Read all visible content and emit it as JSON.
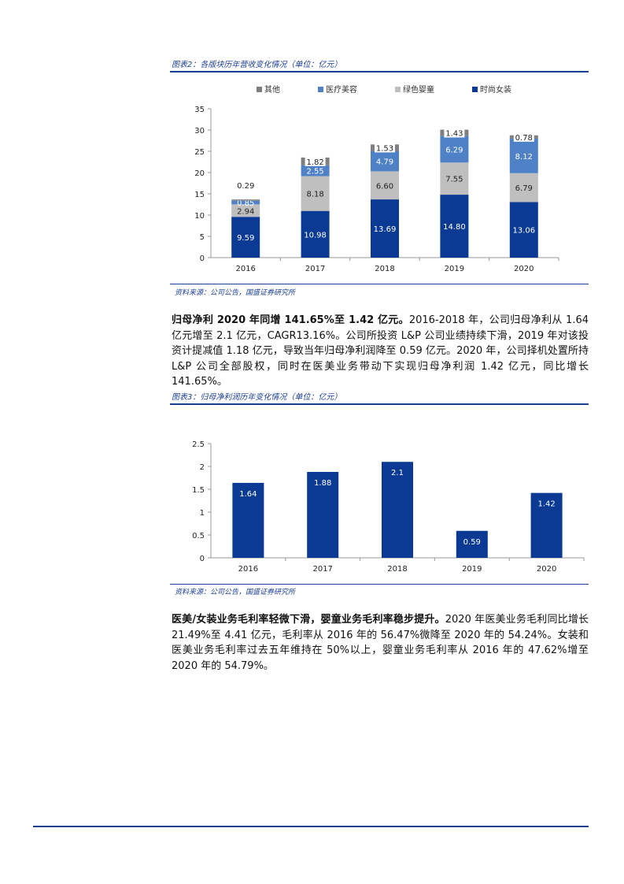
{
  "figure2": {
    "title": "图表2：各版块历年营收变化情况（单位：亿元）",
    "source": "资料来源：公司公告，国盛证券研究所",
    "legend": [
      {
        "label": "其他",
        "color": "#7f7f7f"
      },
      {
        "label": "医疗美容",
        "color": "#4f81c7"
      },
      {
        "label": "绿色婴童",
        "color": "#bfbfbf"
      },
      {
        "label": "时尚女装",
        "color": "#0b3a94"
      }
    ]
  },
  "figure3": {
    "title": "图表3：归母净利润历年变化情况（单位：亿元）",
    "source": "资料来源：公司公告，国盛证券研究所"
  },
  "para1": {
    "bold": "归母净利 2020 年同增 141.65%至 1.42 亿元。",
    "text": "2016-2018 年，公司归母净利从 1.64 亿元增至 2.1 亿元，CAGR13.16%。公司所投资 L&P 公司业绩持续下滑，2019 年对该投资计提减值 1.18 亿元，导致当年归母净利润降至 0.59 亿元。2020 年，公司择机处置所持 L&P 公司全部股权，同时在医美业务带动下实现归母净利润 1.42 亿元，同比增长 141.65%。"
  },
  "para2": {
    "bold": "医美/女装业务毛利率轻微下滑，婴童业务毛利率稳步提升。",
    "text": "2020 年医美业务毛利同比增长 21.49%至 4.41 亿元，毛利率从 2016 年的 56.47%微降至 2020 年的 54.24%。女装和医美业务毛利率过去五年维持在 50%以上，婴童业务毛利率从 2016 年的 47.62%增至 2020 年的 54.79%。"
  },
  "chart_data": [
    {
      "type": "bar",
      "stacked": true,
      "categories": [
        "2016",
        "2017",
        "2018",
        "2019",
        "2020"
      ],
      "series": [
        {
          "name": "时尚女装",
          "values": [
            9.59,
            10.98,
            13.69,
            14.8,
            13.06
          ],
          "color": "#0b3a94"
        },
        {
          "name": "绿色婴童",
          "values": [
            2.94,
            8.18,
            6.6,
            7.55,
            6.79
          ],
          "color": "#bfbfbf"
        },
        {
          "name": "医疗美容",
          "values": [
            0.85,
            2.55,
            4.79,
            6.29,
            8.12
          ],
          "color": "#4f81c7"
        },
        {
          "name": "其他",
          "values": [
            0.29,
            1.82,
            1.53,
            1.43,
            0.78
          ],
          "color": "#7f7f7f"
        }
      ],
      "ylim": [
        0,
        35
      ],
      "yticks": [
        0,
        5,
        10,
        15,
        20,
        25,
        30,
        35
      ],
      "legend_position": "top"
    },
    {
      "type": "bar",
      "categories": [
        "2016",
        "2017",
        "2018",
        "2019",
        "2020"
      ],
      "values": [
        1.64,
        1.88,
        2.1,
        0.59,
        1.42
      ],
      "labels": [
        "1.64",
        "1.88",
        "2.1",
        "0.59",
        "1.42"
      ],
      "color": "#0b3a94",
      "ylim": [
        0,
        2.5
      ],
      "yticks": [
        "0",
        "0.5",
        "1",
        "1.5",
        "2",
        "2.5"
      ]
    }
  ]
}
